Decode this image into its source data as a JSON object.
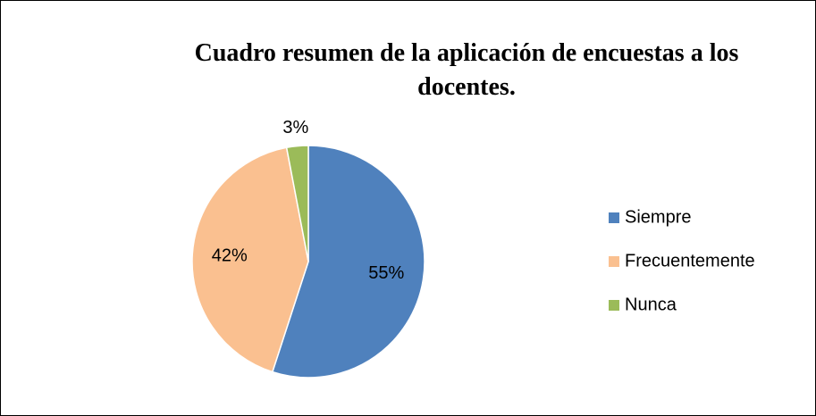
{
  "chart_data": {
    "type": "pie",
    "title": "Cuadro resumen de la aplicación de encuestas a los docentes.",
    "categories": [
      "Siempre",
      "Frecuentemente",
      "Nunca"
    ],
    "values": [
      55,
      42,
      3
    ],
    "value_labels": [
      "55%",
      "42%",
      "3%"
    ],
    "colors": [
      "#4f81bd",
      "#fac090",
      "#9bbb59"
    ],
    "legend": "right"
  }
}
